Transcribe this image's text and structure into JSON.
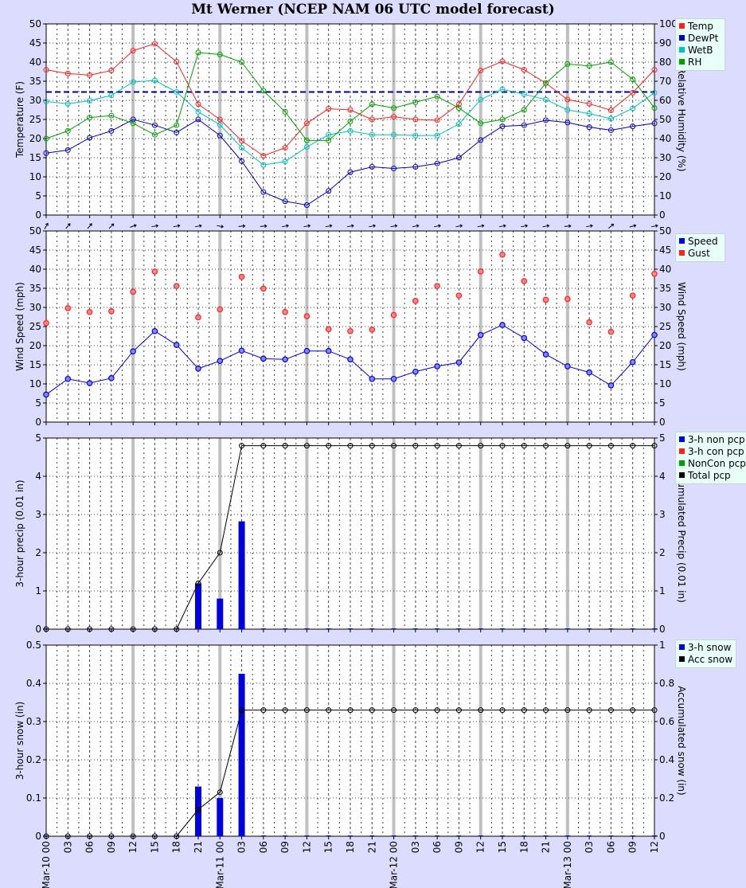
{
  "title": "Mt Werner (NCEP NAM 06 UTC model forecast)",
  "x_tick_labels": [
    "00",
    "03",
    "06",
    "09",
    "12",
    "15",
    "18",
    "21",
    "00",
    "03",
    "06",
    "09",
    "12",
    "15",
    "18",
    "21",
    "00",
    "03",
    "06",
    "09",
    "12",
    "15",
    "18",
    "21",
    "00",
    "03",
    "06",
    "09",
    "12"
  ],
  "x_day_labels": {
    "0": "Mar-10",
    "8": "Mar-11",
    "16": "Mar-12",
    "24": "Mar-13"
  },
  "chart_data": [
    {
      "type": "line",
      "ylabel": "Temperature (F)",
      "ylabel_right": "Relative Humidity (%)",
      "ylim": [
        0,
        50
      ],
      "ylim_right": [
        0,
        100
      ],
      "yticks": [
        0,
        5,
        10,
        15,
        20,
        25,
        30,
        35,
        40,
        45,
        50
      ],
      "yticks_right": [
        0,
        10,
        20,
        30,
        40,
        50,
        60,
        70,
        80,
        90,
        100
      ],
      "grid": true,
      "legend": "top-right",
      "series": [
        {
          "name": "Temp",
          "color": "#ff2020",
          "axis": "left",
          "values": [
            38,
            37,
            36.6,
            37.8,
            43,
            44.8,
            40.1,
            29,
            25,
            19.4,
            15.5,
            17.6,
            24,
            27.8,
            27.5,
            25,
            25.7,
            25,
            24.8,
            29,
            37.8,
            40.2,
            38,
            34.5,
            30.2,
            29.1,
            27.4,
            32,
            38
          ]
        },
        {
          "name": "DewPt",
          "color": "#0000c0",
          "axis": "left",
          "values": [
            16.2,
            17,
            20.2,
            22,
            25,
            23.5,
            21.6,
            25,
            20.8,
            14.1,
            6,
            3.6,
            2.6,
            6.3,
            11.2,
            12.6,
            12.2,
            12.6,
            13.5,
            15,
            19.6,
            23.2,
            23.5,
            24.8,
            24.2,
            23,
            22.2,
            23.2,
            24
          ]
        },
        {
          "name": "WetB",
          "color": "#00c0c0",
          "axis": "left",
          "values": [
            29.7,
            29.1,
            29.9,
            31.3,
            34.8,
            35.2,
            32.2,
            27,
            23.6,
            17.6,
            13.1,
            14,
            17.8,
            21,
            22,
            21,
            21,
            20.8,
            20.8,
            23.8,
            30.2,
            32.9,
            31.6,
            30.2,
            27.5,
            26.5,
            25.2,
            27.9,
            32
          ]
        },
        {
          "name": "RH",
          "color": "#00a000",
          "axis": "right",
          "values": [
            40,
            44,
            51,
            52,
            48,
            42,
            47,
            85,
            84,
            80,
            65,
            54,
            39,
            39,
            49,
            58,
            56,
            59,
            62,
            56,
            48,
            50,
            55,
            69,
            79,
            78,
            80,
            71,
            56
          ]
        }
      ],
      "reference_line": {
        "series": "DewPt",
        "value": 32.2,
        "color": "#000090"
      }
    },
    {
      "type": "scatter",
      "ylabel": "Wind Speed (mph)",
      "ylabel_right": "Wind Speed (mph)",
      "ylim": [
        0,
        50
      ],
      "yticks": [
        0,
        5,
        10,
        15,
        20,
        25,
        30,
        35,
        40,
        45,
        50
      ],
      "grid": true,
      "legend": "top-right",
      "wind_arrows_deg": [
        30,
        40,
        40,
        45,
        70,
        80,
        80,
        80,
        100,
        85,
        85,
        80,
        80,
        80,
        80,
        80,
        80,
        80,
        80,
        80,
        80,
        80,
        80,
        80,
        85,
        80,
        50,
        75,
        80
      ],
      "series": [
        {
          "name": "Speed",
          "color": "#0000e0",
          "line": true,
          "values": [
            7.2,
            11.3,
            10.2,
            11.5,
            18.5,
            23.8,
            20.2,
            14,
            16,
            18.7,
            16.6,
            16.4,
            18.6,
            18.6,
            16.4,
            11.3,
            11.3,
            13.2,
            14.6,
            15.6,
            22.8,
            25.4,
            22,
            17.7,
            14.6,
            13,
            9.6,
            15.7,
            22.8
          ]
        },
        {
          "name": "Gust",
          "color": "#ff2020",
          "line": false,
          "values": [
            25.9,
            29.8,
            28.8,
            29,
            34.1,
            39.4,
            35.6,
            27.4,
            29.5,
            38,
            34.9,
            28.8,
            27.7,
            24.3,
            23.8,
            24.2,
            28,
            31.7,
            35.6,
            33.1,
            39.4,
            43.8,
            36.9,
            32,
            32.2,
            26.1,
            23.6,
            33.1,
            38.8
          ]
        }
      ]
    },
    {
      "type": "bar",
      "ylabel": "3-hour precip (0.01 in)",
      "ylabel_right": "Accumulated Precip (0.01 in)",
      "ylim": [
        0,
        5
      ],
      "yticks": [
        0,
        1,
        2,
        3,
        4,
        5
      ],
      "grid": true,
      "legend": "top-right",
      "series": [
        {
          "name": "3-h non pcp",
          "color": "#0000e0",
          "values": [
            0,
            0,
            0,
            0,
            0,
            0,
            0,
            1.2,
            0.8,
            2.82,
            0,
            0,
            0,
            0,
            0,
            0,
            0,
            0,
            0,
            0,
            0,
            0,
            0,
            0,
            0,
            0,
            0,
            0,
            0
          ]
        },
        {
          "name": "3-h con pcp",
          "color": "#ff2020",
          "values": []
        },
        {
          "name": "NonCon pcp",
          "color": "#00a000",
          "values": []
        },
        {
          "name": "Total pcp",
          "color": "#000000",
          "line": true,
          "values": [
            0,
            0,
            0,
            0,
            0,
            0,
            0,
            1.2,
            2,
            4.8,
            4.8,
            4.8,
            4.8,
            4.8,
            4.8,
            4.8,
            4.8,
            4.8,
            4.8,
            4.8,
            4.8,
            4.8,
            4.8,
            4.8,
            4.8,
            4.8,
            4.8,
            4.8,
            4.8
          ]
        }
      ]
    },
    {
      "type": "bar",
      "ylabel": "3-hour snow (in)",
      "ylabel_right": "Accumulated snow (in)",
      "ylim": [
        0,
        0.5
      ],
      "ylim_right": [
        0,
        1
      ],
      "yticks": [
        0,
        0.1,
        0.2,
        0.3,
        0.4,
        0.5
      ],
      "yticks_right": [
        0,
        0.2,
        0.4,
        0.6,
        0.8,
        1
      ],
      "grid": true,
      "legend": "top-right",
      "series": [
        {
          "name": "3-h snow",
          "color": "#0000e0",
          "axis": "left",
          "values": [
            0,
            0,
            0,
            0,
            0,
            0,
            0,
            0.13,
            0.1,
            0.425,
            0,
            0,
            0,
            0,
            0,
            0,
            0,
            0,
            0,
            0,
            0,
            0,
            0,
            0,
            0,
            0,
            0,
            0,
            0
          ]
        },
        {
          "name": "Acc snow",
          "color": "#000000",
          "axis": "right",
          "line": true,
          "values": [
            0,
            0,
            0,
            0,
            0,
            0,
            0,
            0.14,
            0.23,
            0.66,
            0.66,
            0.66,
            0.66,
            0.66,
            0.66,
            0.66,
            0.66,
            0.66,
            0.66,
            0.66,
            0.66,
            0.66,
            0.66,
            0.66,
            0.66,
            0.66,
            0.66,
            0.66,
            0.66
          ]
        }
      ]
    }
  ]
}
